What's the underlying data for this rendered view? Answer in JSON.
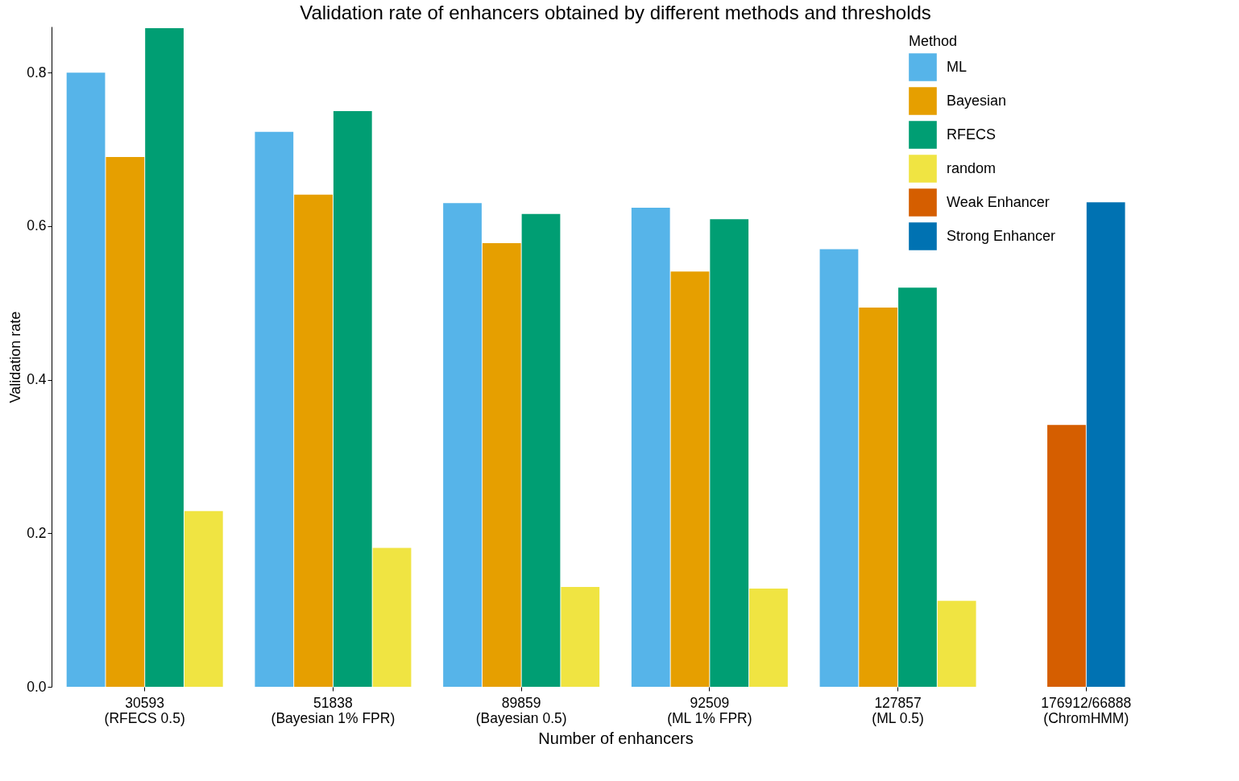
{
  "chart_data": {
    "type": "bar",
    "title": "Validation rate of enhancers obtained by different methods and thresholds",
    "xlabel": "Number of enhancers",
    "ylabel": "Validation rate",
    "legend_title": "Method",
    "categories": [
      "30593\n(RFECS 0.5)",
      "51838\n(Bayesian 1% FPR)",
      "89859\n(Bayesian 0.5)",
      "92509\n(ML 1% FPR)",
      "127857\n(ML 0.5)",
      "176912/66888\n(ChromHMM)"
    ],
    "series": [
      {
        "name": "ML",
        "color": "#56b4e9",
        "values": [
          0.8,
          0.723,
          0.63,
          0.624,
          0.57,
          null
        ]
      },
      {
        "name": "Bayesian",
        "color": "#e69f00",
        "values": [
          0.69,
          0.641,
          0.578,
          0.541,
          0.494,
          null
        ]
      },
      {
        "name": "RFECS",
        "color": "#009e73",
        "values": [
          0.858,
          0.75,
          0.616,
          0.609,
          0.52,
          null
        ]
      },
      {
        "name": "random",
        "color": "#f0e442",
        "values": [
          0.229,
          0.181,
          0.13,
          0.128,
          0.112,
          null
        ]
      },
      {
        "name": "Weak Enhancer",
        "color": "#d55e00",
        "values": [
          null,
          null,
          null,
          null,
          null,
          0.341
        ]
      },
      {
        "name": "Strong Enhancer",
        "color": "#0072b2",
        "values": [
          null,
          null,
          null,
          null,
          null,
          0.631
        ]
      }
    ],
    "ylim": [
      0,
      0.86
    ],
    "yticks": [
      {
        "value": 0,
        "label": "0.0"
      },
      {
        "value": 0.2,
        "label": "0.2"
      },
      {
        "value": 0.4,
        "label": "0.4"
      },
      {
        "value": 0.6,
        "label": "0.6"
      },
      {
        "value": 0.8,
        "label": "0.8"
      }
    ],
    "grid": false,
    "legend": "top right"
  }
}
